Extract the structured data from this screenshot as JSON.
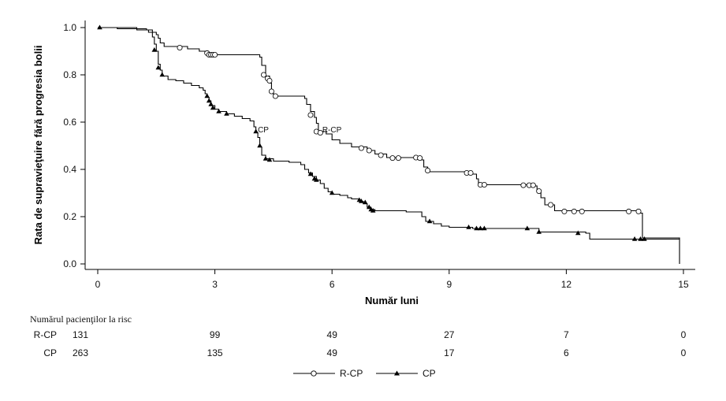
{
  "chart_data": {
    "type": "line",
    "subtype": "kaplan-meier",
    "xlabel": "Număr luni",
    "ylabel": "Rata de supravieţuire fără progresia bolii",
    "xlim": [
      0,
      15
    ],
    "ylim": [
      0.0,
      1.0
    ],
    "xticks": [
      0,
      3,
      6,
      9,
      12,
      15
    ],
    "yticks": [
      "0.0",
      "0.2",
      "0.4",
      "0.6",
      "0.8",
      "1.0"
    ],
    "grid": false,
    "legend_position": "bottom-center",
    "annotations": [
      {
        "text": "CP",
        "x": 4.1,
        "y": 0.57
      },
      {
        "text": "R-CP",
        "x": 5.75,
        "y": 0.57
      }
    ],
    "series": [
      {
        "name": "R-CP",
        "marker": "circle-open",
        "steps": [
          [
            0,
            1.0
          ],
          [
            1.0,
            0.995
          ],
          [
            1.25,
            0.99
          ],
          [
            1.4,
            0.98
          ],
          [
            1.5,
            0.97
          ],
          [
            1.55,
            0.955
          ],
          [
            1.6,
            0.935
          ],
          [
            1.7,
            0.92
          ],
          [
            2.3,
            0.91
          ],
          [
            2.6,
            0.9
          ],
          [
            2.75,
            0.89
          ],
          [
            2.8,
            0.885
          ],
          [
            4.15,
            0.875
          ],
          [
            4.2,
            0.84
          ],
          [
            4.3,
            0.795
          ],
          [
            4.4,
            0.765
          ],
          [
            4.45,
            0.73
          ],
          [
            4.5,
            0.71
          ],
          [
            5.3,
            0.7
          ],
          [
            5.35,
            0.675
          ],
          [
            5.45,
            0.645
          ],
          [
            5.55,
            0.62
          ],
          [
            5.6,
            0.595
          ],
          [
            5.65,
            0.56
          ],
          [
            5.85,
            0.55
          ],
          [
            6.0,
            0.525
          ],
          [
            6.2,
            0.51
          ],
          [
            6.5,
            0.495
          ],
          [
            6.9,
            0.48
          ],
          [
            7.1,
            0.465
          ],
          [
            7.4,
            0.45
          ],
          [
            8.25,
            0.44
          ],
          [
            8.35,
            0.41
          ],
          [
            8.45,
            0.39
          ],
          [
            9.4,
            0.38
          ],
          [
            9.7,
            0.36
          ],
          [
            9.75,
            0.335
          ],
          [
            11.1,
            0.33
          ],
          [
            11.25,
            0.305
          ],
          [
            11.35,
            0.28
          ],
          [
            11.45,
            0.25
          ],
          [
            11.7,
            0.225
          ],
          [
            13.85,
            0.215
          ],
          [
            13.95,
            0.11
          ],
          [
            14.9,
            0.0
          ]
        ],
        "end_x": 14.9,
        "censored": [
          [
            2.1,
            0.915
          ],
          [
            2.8,
            0.892
          ],
          [
            2.85,
            0.885
          ],
          [
            2.9,
            0.885
          ],
          [
            2.95,
            0.885
          ],
          [
            3.0,
            0.885
          ],
          [
            4.25,
            0.8
          ],
          [
            4.35,
            0.785
          ],
          [
            4.4,
            0.775
          ],
          [
            4.45,
            0.73
          ],
          [
            4.55,
            0.71
          ],
          [
            5.45,
            0.63
          ],
          [
            5.6,
            0.56
          ],
          [
            5.7,
            0.555
          ],
          [
            6.75,
            0.49
          ],
          [
            6.95,
            0.48
          ],
          [
            7.25,
            0.46
          ],
          [
            7.55,
            0.448
          ],
          [
            7.7,
            0.448
          ],
          [
            8.15,
            0.45
          ],
          [
            8.25,
            0.448
          ],
          [
            8.45,
            0.395
          ],
          [
            9.45,
            0.385
          ],
          [
            9.55,
            0.385
          ],
          [
            9.8,
            0.335
          ],
          [
            9.9,
            0.335
          ],
          [
            10.9,
            0.333
          ],
          [
            11.05,
            0.333
          ],
          [
            11.15,
            0.333
          ],
          [
            11.3,
            0.308
          ],
          [
            11.6,
            0.25
          ],
          [
            11.95,
            0.222
          ],
          [
            12.2,
            0.222
          ],
          [
            12.4,
            0.222
          ],
          [
            13.6,
            0.222
          ],
          [
            13.85,
            0.222
          ]
        ]
      },
      {
        "name": "CP",
        "marker": "triangle-filled",
        "steps": [
          [
            0,
            1.0
          ],
          [
            0.5,
            0.995
          ],
          [
            1.0,
            0.99
          ],
          [
            1.3,
            0.98
          ],
          [
            1.4,
            0.96
          ],
          [
            1.45,
            0.93
          ],
          [
            1.5,
            0.9
          ],
          [
            1.55,
            0.845
          ],
          [
            1.6,
            0.82
          ],
          [
            1.65,
            0.795
          ],
          [
            1.8,
            0.78
          ],
          [
            2.0,
            0.775
          ],
          [
            2.2,
            0.765
          ],
          [
            2.4,
            0.755
          ],
          [
            2.6,
            0.745
          ],
          [
            2.7,
            0.735
          ],
          [
            2.75,
            0.72
          ],
          [
            2.8,
            0.705
          ],
          [
            2.85,
            0.69
          ],
          [
            2.9,
            0.67
          ],
          [
            3.0,
            0.655
          ],
          [
            3.1,
            0.645
          ],
          [
            3.3,
            0.635
          ],
          [
            3.5,
            0.625
          ],
          [
            3.7,
            0.615
          ],
          [
            3.9,
            0.605
          ],
          [
            4.0,
            0.58
          ],
          [
            4.05,
            0.555
          ],
          [
            4.1,
            0.535
          ],
          [
            4.15,
            0.495
          ],
          [
            4.2,
            0.46
          ],
          [
            4.3,
            0.445
          ],
          [
            4.5,
            0.435
          ],
          [
            4.9,
            0.43
          ],
          [
            5.2,
            0.42
          ],
          [
            5.3,
            0.4
          ],
          [
            5.4,
            0.385
          ],
          [
            5.5,
            0.37
          ],
          [
            5.6,
            0.355
          ],
          [
            5.7,
            0.34
          ],
          [
            5.8,
            0.32
          ],
          [
            5.9,
            0.305
          ],
          [
            6.0,
            0.295
          ],
          [
            6.2,
            0.29
          ],
          [
            6.4,
            0.28
          ],
          [
            6.5,
            0.275
          ],
          [
            6.7,
            0.265
          ],
          [
            6.8,
            0.255
          ],
          [
            6.9,
            0.24
          ],
          [
            7.0,
            0.23
          ],
          [
            7.1,
            0.225
          ],
          [
            7.9,
            0.22
          ],
          [
            8.3,
            0.2
          ],
          [
            8.4,
            0.18
          ],
          [
            8.6,
            0.17
          ],
          [
            8.8,
            0.16
          ],
          [
            9.0,
            0.155
          ],
          [
            9.6,
            0.15
          ],
          [
            9.7,
            0.15
          ],
          [
            11.3,
            0.135
          ],
          [
            12.5,
            0.13
          ],
          [
            12.6,
            0.105
          ],
          [
            14.9,
            0.105
          ]
        ],
        "end_x": 14.9,
        "censored": [
          [
            0.05,
            1.0
          ],
          [
            1.45,
            0.905
          ],
          [
            1.55,
            0.83
          ],
          [
            1.65,
            0.8
          ],
          [
            2.8,
            0.71
          ],
          [
            2.85,
            0.69
          ],
          [
            2.9,
            0.675
          ],
          [
            2.95,
            0.66
          ],
          [
            3.1,
            0.645
          ],
          [
            3.3,
            0.635
          ],
          [
            4.05,
            0.56
          ],
          [
            4.15,
            0.5
          ],
          [
            4.3,
            0.445
          ],
          [
            4.4,
            0.44
          ],
          [
            5.45,
            0.38
          ],
          [
            5.55,
            0.36
          ],
          [
            5.6,
            0.355
          ],
          [
            6.0,
            0.3
          ],
          [
            6.7,
            0.27
          ],
          [
            6.75,
            0.265
          ],
          [
            6.85,
            0.26
          ],
          [
            6.95,
            0.24
          ],
          [
            7.0,
            0.23
          ],
          [
            7.05,
            0.225
          ],
          [
            8.5,
            0.18
          ],
          [
            9.5,
            0.155
          ],
          [
            9.7,
            0.15
          ],
          [
            9.8,
            0.15
          ],
          [
            9.9,
            0.15
          ],
          [
            11.0,
            0.15
          ],
          [
            11.3,
            0.135
          ],
          [
            12.3,
            0.13
          ],
          [
            13.75,
            0.105
          ],
          [
            13.9,
            0.105
          ],
          [
            14.0,
            0.105
          ]
        ]
      }
    ]
  },
  "risk_table": {
    "title": "Numărul pacienţilor la risc",
    "rows": [
      {
        "label": "R-CP",
        "values": [
          "131",
          "99",
          "49",
          "27",
          "7",
          "0"
        ]
      },
      {
        "label": "CP",
        "values": [
          "263",
          "135",
          "49",
          "17",
          "6",
          "0"
        ]
      }
    ]
  },
  "legend": {
    "items": [
      {
        "label": "R-CP",
        "marker": "circle-open"
      },
      {
        "label": "CP",
        "marker": "triangle-filled"
      }
    ]
  }
}
